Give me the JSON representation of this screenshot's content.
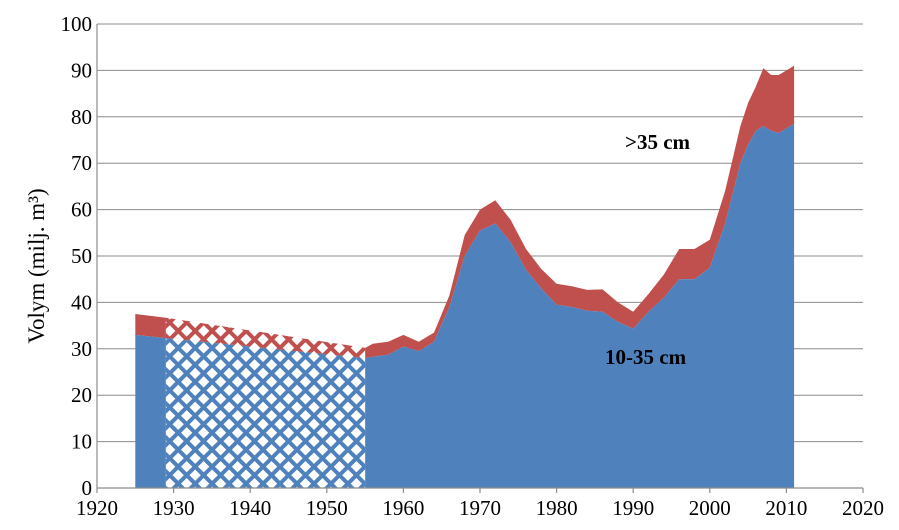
{
  "chart_data": {
    "type": "area",
    "title": "",
    "xlabel": "",
    "ylabel": "Volym (milj. m³)",
    "xlim": [
      1920,
      2020
    ],
    "ylim": [
      0,
      100
    ],
    "xticks": [
      "1920",
      "1930",
      "1940",
      "1950",
      "1960",
      "1970",
      "1980",
      "1990",
      "2000",
      "2010",
      "2020"
    ],
    "yticks": [
      "0",
      "10",
      "20",
      "30",
      "40",
      "50",
      "60",
      "70",
      "80",
      "90",
      "100"
    ],
    "grid": true,
    "colors": {
      "small": "#4f81bd",
      "large": "#c0504d"
    },
    "series": [
      {
        "name": "10-35 cm",
        "label": "10-35 cm",
        "x": [
          1925,
          1929,
          1955,
          1956,
          1958,
          1960,
          1962,
          1964,
          1966,
          1968,
          1970,
          1972,
          1974,
          1976,
          1978,
          1980,
          1982,
          1984,
          1986,
          1988,
          1990,
          1992,
          1994,
          1996,
          1998,
          2000,
          2002,
          2004,
          2005,
          2006,
          2007,
          2008,
          2009,
          2010,
          2011
        ],
        "values": [
          33,
          32.3,
          28,
          28.3,
          28.7,
          30.5,
          29.5,
          31.5,
          39,
          50,
          55.5,
          57,
          53,
          47,
          43,
          39.5,
          39,
          38.2,
          38,
          35.8,
          34.3,
          38,
          41,
          45,
          45,
          47.5,
          57,
          70,
          74,
          77,
          78,
          77,
          76.5,
          77.5,
          78.5
        ]
      },
      {
        "name": ">35 cm",
        "label": ">35 cm",
        "x": [
          1925,
          1929,
          1955,
          1956,
          1958,
          1960,
          1962,
          1964,
          1966,
          1968,
          1970,
          1972,
          1974,
          1976,
          1978,
          1980,
          1982,
          1984,
          1986,
          1988,
          1990,
          1992,
          1994,
          1996,
          1998,
          2000,
          2002,
          2004,
          2005,
          2006,
          2007,
          2008,
          2009,
          2010,
          2011
        ],
        "values": [
          4.5,
          4.4,
          2.2,
          2.8,
          2.8,
          2.5,
          2,
          2,
          2.5,
          4.5,
          4.5,
          5,
          4.8,
          4.5,
          4.2,
          4.5,
          4.5,
          4.5,
          4.8,
          4.2,
          3.7,
          3.8,
          5,
          6.5,
          6.5,
          6,
          7,
          8,
          9,
          9.5,
          12.5,
          12,
          12.5,
          12.5,
          12.5
        ]
      }
    ],
    "missing_data_interval": [
      1929,
      1955
    ],
    "missing_data_note": "interpolated (hatched) between 1929 and 1955"
  }
}
